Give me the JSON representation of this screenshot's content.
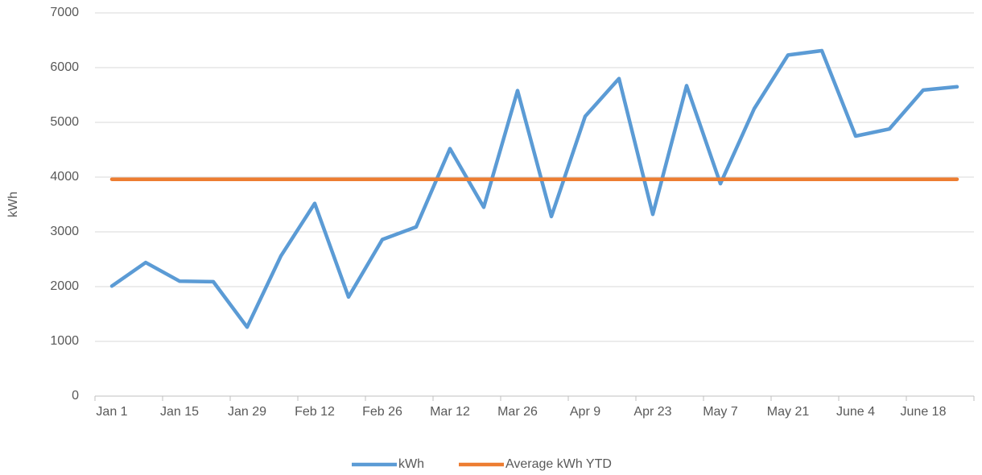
{
  "chart_data": {
    "type": "line",
    "y_label": "kWh",
    "categories": [
      "Jan 1",
      null,
      "Jan 15",
      null,
      "Jan 29",
      null,
      "Feb 12",
      null,
      "Feb 26",
      null,
      "Mar 12",
      null,
      "Mar 26",
      null,
      "Apr 9",
      null,
      "Apr 23",
      null,
      "May 7",
      null,
      "May 21",
      null,
      "June 4",
      null,
      "June 18",
      null
    ],
    "series": [
      {
        "name": "kWh",
        "color": "#5b9bd5",
        "values": [
          2010,
          2440,
          2100,
          2090,
          1260,
          2560,
          3520,
          1810,
          2860,
          3090,
          4520,
          3450,
          5580,
          3280,
          5110,
          5800,
          3320,
          5670,
          3880,
          5250,
          6230,
          6310,
          4750,
          4880,
          5590,
          5650
        ]
      },
      {
        "name": "Average kWh YTD",
        "color": "#ed7d31",
        "values": [
          3960,
          3960,
          3960,
          3960,
          3960,
          3960,
          3960,
          3960,
          3960,
          3960,
          3960,
          3960,
          3960,
          3960,
          3960,
          3960,
          3960,
          3960,
          3960,
          3960,
          3960,
          3960,
          3960,
          3960,
          3960,
          3960
        ]
      }
    ],
    "ylim": [
      0,
      7000
    ],
    "yticks": [
      0,
      1000,
      2000,
      3000,
      4000,
      5000,
      6000,
      7000
    ],
    "grid": true,
    "legend": "bottom"
  }
}
